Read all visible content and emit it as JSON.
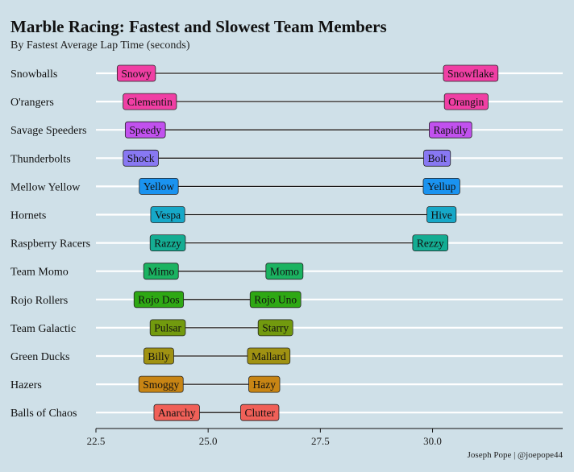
{
  "chart_data": {
    "type": "dumbbell",
    "title": "Marble Racing: Fastest and Slowest Team Members",
    "subtitle": "By Fastest Average Lap Time (seconds)",
    "caption": "Joseph Pope | @joepope44",
    "xlim": [
      22.5,
      32.9
    ],
    "x_ticks": [
      22.5,
      25.0,
      27.5,
      30.0
    ],
    "x_tick_labels": [
      "22.5",
      "25.0",
      "27.5",
      "30.0"
    ],
    "grid": "horizontal",
    "teams": [
      {
        "team": "Snowballs",
        "fastest": {
          "name": "Snowy",
          "x": 23.4,
          "color": "#f03fa4"
        },
        "slowest": {
          "name": "Snowflake",
          "x": 30.85,
          "color": "#f03fa4"
        }
      },
      {
        "team": "O'rangers",
        "fastest": {
          "name": "Clementin",
          "x": 23.7,
          "color": "#f03fa4"
        },
        "slowest": {
          "name": "Orangin",
          "x": 30.75,
          "color": "#f03fa4"
        }
      },
      {
        "team": "Savage Speeders",
        "fastest": {
          "name": "Speedy",
          "x": 23.6,
          "color": "#c151ee"
        },
        "slowest": {
          "name": "Rapidly",
          "x": 30.4,
          "color": "#c151ee"
        }
      },
      {
        "team": "Thunderbolts",
        "fastest": {
          "name": "Shock",
          "x": 23.5,
          "color": "#8878f2"
        },
        "slowest": {
          "name": "Bolt",
          "x": 30.1,
          "color": "#8878f2"
        }
      },
      {
        "team": "Mellow Yellow",
        "fastest": {
          "name": "Yellow",
          "x": 23.9,
          "color": "#1a93f0"
        },
        "slowest": {
          "name": "Yellup",
          "x": 30.2,
          "color": "#1a93f0"
        }
      },
      {
        "team": "Hornets",
        "fastest": {
          "name": "Vespa",
          "x": 24.1,
          "color": "#16a8c8"
        },
        "slowest": {
          "name": "Hive",
          "x": 30.2,
          "color": "#16a8c8"
        }
      },
      {
        "team": "Raspberry Racers",
        "fastest": {
          "name": "Razzy",
          "x": 24.1,
          "color": "#14ad93"
        },
        "slowest": {
          "name": "Rezzy",
          "x": 29.95,
          "color": "#14ad93"
        }
      },
      {
        "team": "Team Momo",
        "fastest": {
          "name": "Mimo",
          "x": 23.95,
          "color": "#1bb361"
        },
        "slowest": {
          "name": "Momo",
          "x": 26.7,
          "color": "#1bb361"
        }
      },
      {
        "team": "Rojo Rollers",
        "fastest": {
          "name": "Rojo Dos",
          "x": 23.9,
          "color": "#2ea814"
        },
        "slowest": {
          "name": "Rojo Uno",
          "x": 26.5,
          "color": "#2ea814"
        }
      },
      {
        "team": "Team Galactic",
        "fastest": {
          "name": "Pulsar",
          "x": 24.1,
          "color": "#729a0e"
        },
        "slowest": {
          "name": "Starry",
          "x": 26.5,
          "color": "#729a0e"
        }
      },
      {
        "team": "Green Ducks",
        "fastest": {
          "name": "Billy",
          "x": 23.9,
          "color": "#a09212"
        },
        "slowest": {
          "name": "Mallard",
          "x": 26.35,
          "color": "#a09212"
        }
      },
      {
        "team": "Hazers",
        "fastest": {
          "name": "Smoggy",
          "x": 23.95,
          "color": "#c88514"
        },
        "slowest": {
          "name": "Hazy",
          "x": 26.25,
          "color": "#c88514"
        }
      },
      {
        "team": "Balls of Chaos",
        "fastest": {
          "name": "Anarchy",
          "x": 24.3,
          "color": "#f06058"
        },
        "slowest": {
          "name": "Clutter",
          "x": 26.15,
          "color": "#f06058"
        }
      }
    ]
  }
}
